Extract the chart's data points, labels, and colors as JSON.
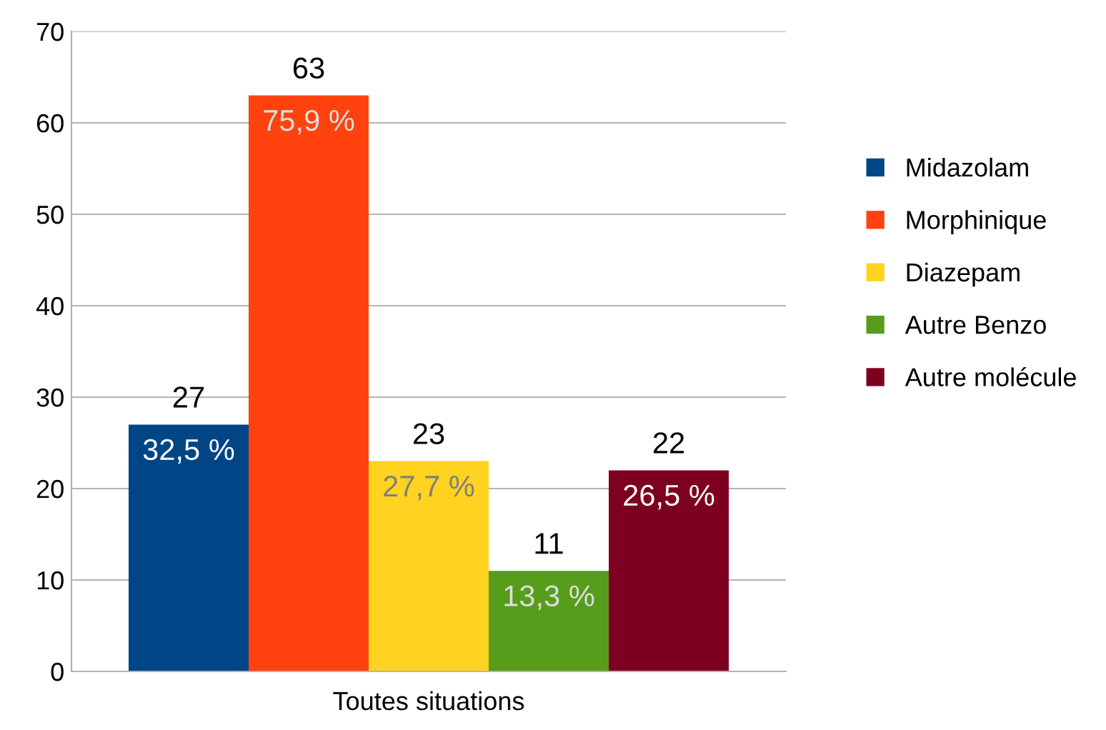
{
  "chart_data": {
    "type": "bar",
    "categories": [
      "Toutes situations"
    ],
    "series": [
      {
        "name": "Midazolam",
        "color": "#004586",
        "values": [
          27
        ]
      },
      {
        "name": "Morphinique",
        "color": "#ff420e",
        "values": [
          63
        ]
      },
      {
        "name": "Diazepam",
        "color": "#ffd320",
        "values": [
          23
        ]
      },
      {
        "name": "Autre Benzo",
        "color": "#579d1c",
        "values": [
          11
        ]
      },
      {
        "name": "Autre molécule",
        "color": "#7e0021",
        "values": [
          22
        ]
      }
    ],
    "annotations": [
      "32,5 %",
      "75,9 %",
      "27,7 %",
      "13,3 %",
      "26,5 %"
    ],
    "ylim": [
      0,
      70
    ],
    "yticks": [
      0,
      10,
      20,
      30,
      40,
      50,
      60,
      70
    ],
    "grid": "y",
    "legend": "right",
    "data_labels": true
  }
}
